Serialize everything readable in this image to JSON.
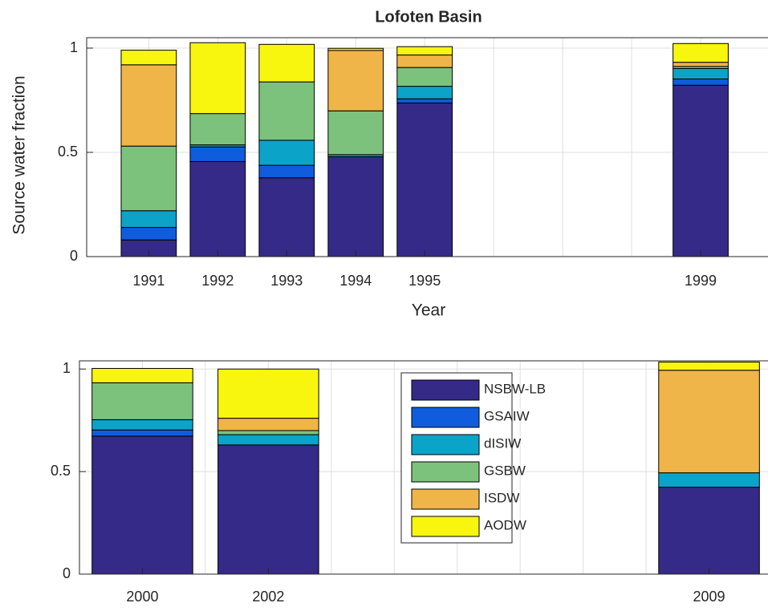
{
  "chart_data": [
    {
      "type": "bar",
      "stacked": true,
      "title": "Lofoten Basin",
      "y_label": "Source water fraction",
      "x_label": "Year",
      "x": [
        1991,
        1992,
        1993,
        1994,
        1995,
        1999
      ],
      "series": [
        {
          "name": "NSBW-LB",
          "color": "#352a87",
          "values": [
            0.08,
            0.456,
            0.378,
            0.479,
            0.737,
            0.822
          ]
        },
        {
          "name": "GSAIW",
          "color": "#0f5cdd",
          "values": [
            0.06,
            0.07,
            0.06,
            0.0,
            0.02,
            0.03
          ]
        },
        {
          "name": "dISIW",
          "color": "#0ca3c9",
          "values": [
            0.08,
            0.01,
            0.12,
            0.01,
            0.06,
            0.05
          ]
        },
        {
          "name": "GSBW",
          "color": "#7dc27c",
          "values": [
            0.31,
            0.15,
            0.28,
            0.21,
            0.09,
            0.01
          ]
        },
        {
          "name": "ISDW",
          "color": "#f0b548",
          "values": [
            0.39,
            0.0,
            0.0,
            0.29,
            0.06,
            0.02
          ]
        },
        {
          "name": "AODW",
          "color": "#f8f50f",
          "values": [
            0.07,
            0.34,
            0.18,
            0.01,
            0.04,
            0.09
          ]
        }
      ],
      "xlim": [
        1990.1,
        2000
      ],
      "xticks": [
        1991,
        1992,
        1993,
        1994,
        1995,
        1999
      ],
      "xgrid": [
        1991,
        1992,
        1993,
        1994,
        1995,
        1996,
        1997,
        1998,
        1999
      ],
      "ylim": [
        0,
        1.05
      ],
      "yticks": [
        0,
        0.5,
        1
      ],
      "grid": true,
      "legend": false
    },
    {
      "type": "bar",
      "stacked": true,
      "x": [
        2000,
        2002,
        2009
      ],
      "series": [
        {
          "name": "NSBW-LB",
          "color": "#352a87",
          "values": [
            0.673,
            0.63,
            0.424
          ]
        },
        {
          "name": "GSAIW",
          "color": "#0f5cdd",
          "values": [
            0.03,
            0.0,
            0.0
          ]
        },
        {
          "name": "dISIW",
          "color": "#0ca3c9",
          "values": [
            0.05,
            0.05,
            0.07
          ]
        },
        {
          "name": "GSBW",
          "color": "#7dc27c",
          "values": [
            0.18,
            0.02,
            0.0
          ]
        },
        {
          "name": "ISDW",
          "color": "#f0b548",
          "values": [
            0.0,
            0.06,
            0.5
          ]
        },
        {
          "name": "AODW",
          "color": "#f8f50f",
          "values": [
            0.07,
            0.24,
            0.04
          ]
        }
      ],
      "xlim": [
        1999,
        2010
      ],
      "xticks": [
        2000,
        2002,
        2009
      ],
      "xgrid": [
        2000,
        2001,
        2002,
        2003,
        2004,
        2005,
        2006,
        2007,
        2008,
        2009
      ],
      "ylim": [
        0,
        1.04
      ],
      "yticks": [
        0,
        0.5,
        1
      ],
      "grid": true,
      "legend": "inside-top"
    }
  ]
}
